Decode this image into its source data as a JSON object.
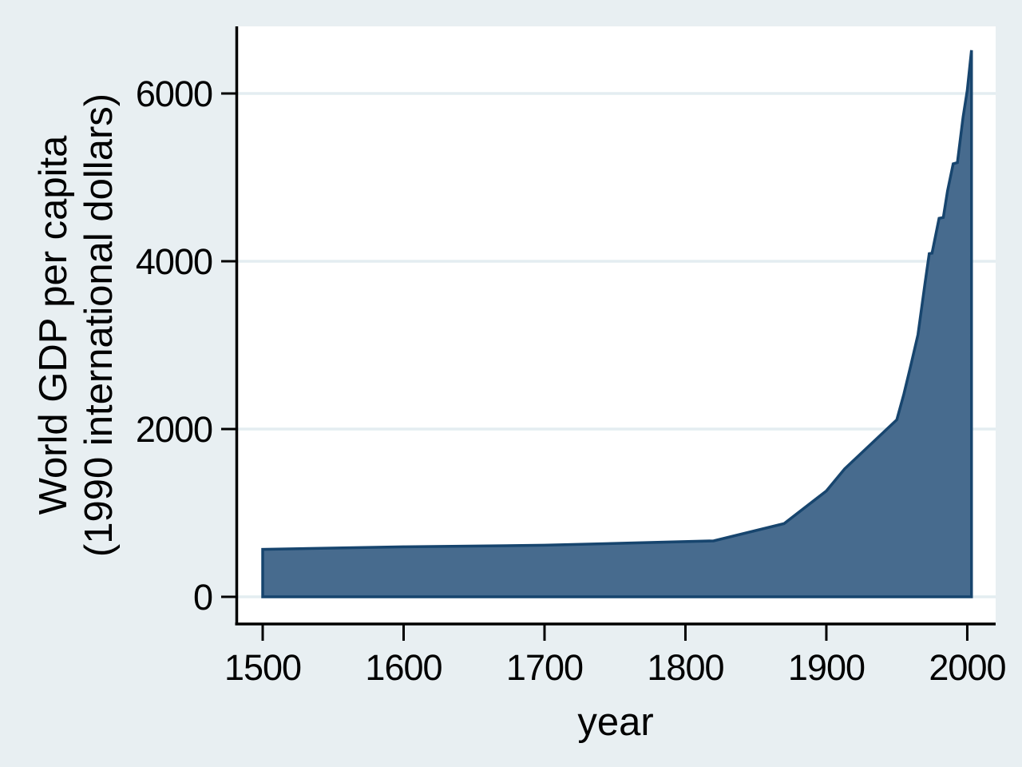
{
  "chart_data": {
    "type": "area",
    "title": "",
    "xlabel": "year",
    "ylabel": "World GDP per capita (1990 international dollars)",
    "ylabel_lines": [
      "World GDP per capita",
      "(1990 international dollars)"
    ],
    "x_ticks": [
      1500,
      1600,
      1700,
      1800,
      1900,
      2000
    ],
    "x_tick_labels": [
      "1500",
      "1600",
      "1700",
      "1800",
      "1900",
      "2000"
    ],
    "y_ticks": [
      0,
      2000,
      4000,
      6000
    ],
    "y_tick_labels": [
      "0",
      "2000",
      "4000",
      "6000"
    ],
    "xlim": [
      1481,
      2020
    ],
    "ylim": [
      0,
      6790
    ],
    "grid": "horizontal",
    "legend": "none",
    "series": [
      {
        "name": "World GDP per capita (1990 international dollars)",
        "points": [
          [
            1500,
            566
          ],
          [
            1600,
            596
          ],
          [
            1700,
            615
          ],
          [
            1820,
            667
          ],
          [
            1870,
            873
          ],
          [
            1900,
            1262
          ],
          [
            1913,
            1526
          ],
          [
            1950,
            2111
          ],
          [
            1955,
            2416
          ],
          [
            1960,
            2764
          ],
          [
            1965,
            3124
          ],
          [
            1970,
            3736
          ],
          [
            1973,
            4091
          ],
          [
            1975,
            4097
          ],
          [
            1980,
            4512
          ],
          [
            1983,
            4522
          ],
          [
            1986,
            4839
          ],
          [
            1990,
            5162
          ],
          [
            1993,
            5176
          ],
          [
            1997,
            5715
          ],
          [
            2000,
            6038
          ],
          [
            2003,
            6516
          ]
        ]
      }
    ],
    "colors": {
      "background": "#e8eff2",
      "plot_background": "#ffffff",
      "gridline": "#e4edf1",
      "area_fill": "#476b8e",
      "area_stroke": "#17456e",
      "axis": "#000000"
    }
  }
}
